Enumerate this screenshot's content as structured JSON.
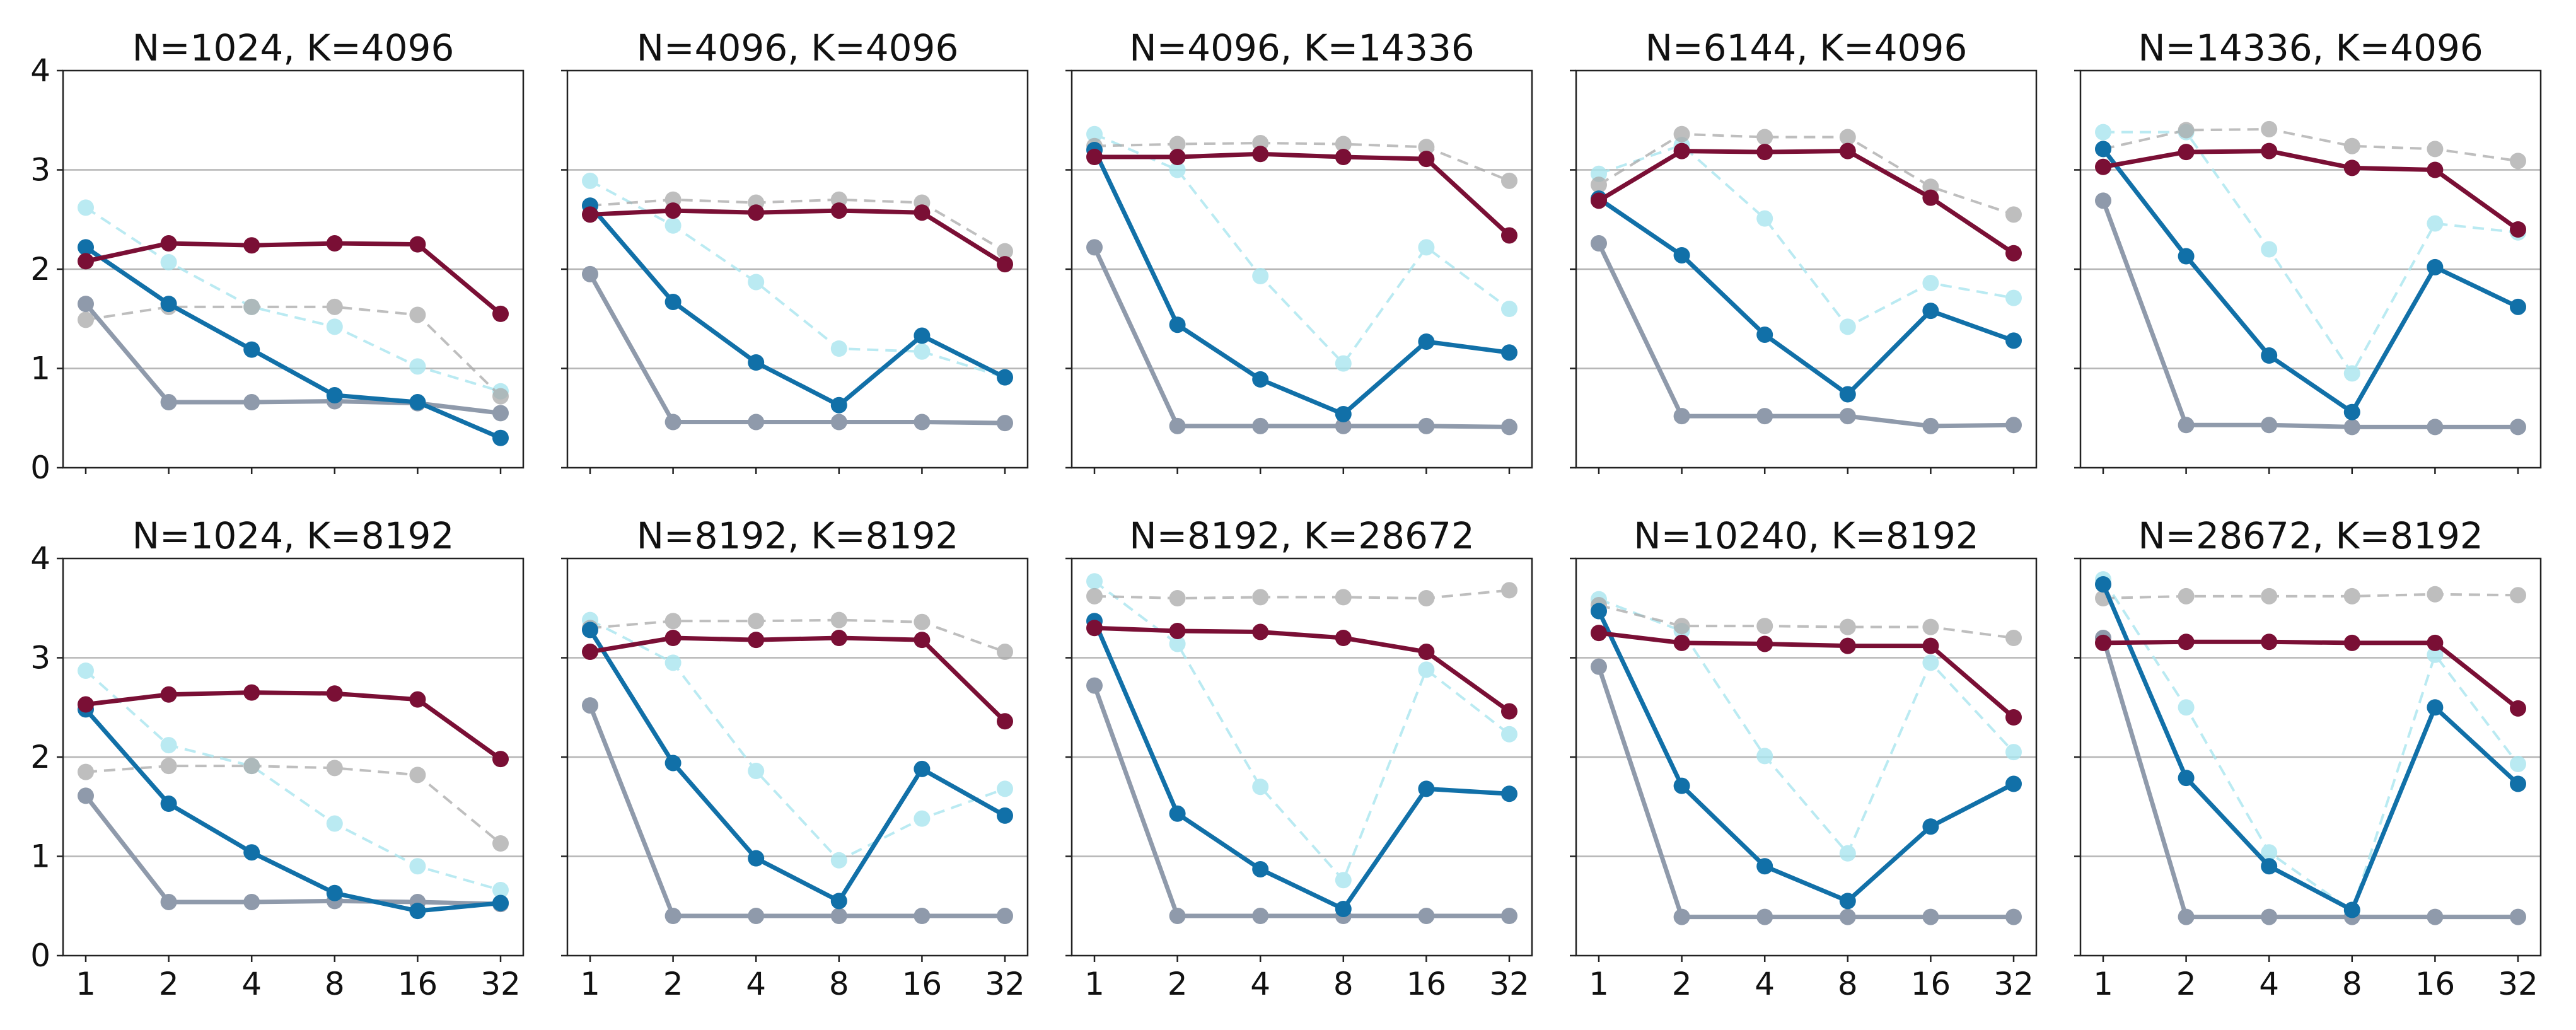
{
  "chart_data": {
    "type": "line",
    "layout": "2x5 small multiples",
    "x_scale": "log2",
    "x": [
      1,
      2,
      4,
      8,
      16,
      32
    ],
    "x_tick_labels": [
      "1",
      "2",
      "4",
      "8",
      "16",
      "32"
    ],
    "y_tick_labels": [
      "0",
      "1",
      "2",
      "3",
      "4"
    ],
    "ylim": [
      0,
      4
    ],
    "y_grid": true,
    "series_styles": [
      {
        "key": "crimson",
        "color": "#7a0f35",
        "dashed": false,
        "opacity": 1
      },
      {
        "key": "blue",
        "color": "#1170a8",
        "dashed": false,
        "opacity": 1
      },
      {
        "key": "slate",
        "color": "#8f9aab",
        "dashed": false,
        "opacity": 1
      },
      {
        "key": "gray-dashed",
        "color": "#a9a9a9",
        "dashed": true,
        "opacity": 0.75
      },
      {
        "key": "cyan-dashed",
        "color": "#a9e6ef",
        "dashed": true,
        "opacity": 0.8
      }
    ],
    "panels": [
      {
        "title": "N=1024, K=4096",
        "series": [
          {
            "style": "crimson",
            "values": [
              2.08,
              2.26,
              2.24,
              2.26,
              2.25,
              1.55
            ]
          },
          {
            "style": "blue",
            "values": [
              2.22,
              1.65,
              1.19,
              0.73,
              0.66,
              0.3
            ]
          },
          {
            "style": "slate",
            "values": [
              1.65,
              0.66,
              0.66,
              0.67,
              0.65,
              0.55
            ]
          },
          {
            "style": "gray-dashed",
            "values": [
              1.49,
              1.62,
              1.62,
              1.62,
              1.54,
              0.72
            ]
          },
          {
            "style": "cyan-dashed",
            "values": [
              2.62,
              2.07,
              1.62,
              1.42,
              1.02,
              0.77
            ]
          }
        ]
      },
      {
        "title": "N=4096, K=4096",
        "series": [
          {
            "style": "crimson",
            "values": [
              2.55,
              2.59,
              2.57,
              2.59,
              2.57,
              2.05
            ]
          },
          {
            "style": "blue",
            "values": [
              2.64,
              1.67,
              1.06,
              0.63,
              1.33,
              0.91
            ]
          },
          {
            "style": "slate",
            "values": [
              1.95,
              0.46,
              0.46,
              0.46,
              0.46,
              0.45
            ]
          },
          {
            "style": "gray-dashed",
            "values": [
              2.64,
              2.7,
              2.67,
              2.7,
              2.67,
              2.18
            ]
          },
          {
            "style": "cyan-dashed",
            "values": [
              2.89,
              2.44,
              1.87,
              1.2,
              1.17,
              0.91
            ]
          }
        ]
      },
      {
        "title": "N=4096, K=14336",
        "series": [
          {
            "style": "crimson",
            "values": [
              3.13,
              3.13,
              3.16,
              3.13,
              3.11,
              2.34
            ]
          },
          {
            "style": "blue",
            "values": [
              3.2,
              1.44,
              0.89,
              0.54,
              1.27,
              1.16
            ]
          },
          {
            "style": "slate",
            "values": [
              2.22,
              0.42,
              0.42,
              0.42,
              0.42,
              0.41
            ]
          },
          {
            "style": "gray-dashed",
            "values": [
              3.24,
              3.26,
              3.27,
              3.26,
              3.23,
              2.89
            ]
          },
          {
            "style": "cyan-dashed",
            "values": [
              3.36,
              3.0,
              1.93,
              1.05,
              2.22,
              1.6
            ]
          }
        ]
      },
      {
        "title": "N=6144, K=4096",
        "series": [
          {
            "style": "crimson",
            "values": [
              2.69,
              3.19,
              3.18,
              3.19,
              2.72,
              2.16
            ]
          },
          {
            "style": "blue",
            "values": [
              2.71,
              2.14,
              1.34,
              0.74,
              1.58,
              1.28
            ]
          },
          {
            "style": "slate",
            "values": [
              2.26,
              0.52,
              0.52,
              0.52,
              0.42,
              0.43
            ]
          },
          {
            "style": "gray-dashed",
            "values": [
              2.85,
              3.36,
              3.33,
              3.33,
              2.83,
              2.55
            ]
          },
          {
            "style": "cyan-dashed",
            "values": [
              2.96,
              3.25,
              2.51,
              1.42,
              1.86,
              1.71
            ]
          }
        ]
      },
      {
        "title": "N=14336, K=4096",
        "series": [
          {
            "style": "crimson",
            "values": [
              3.03,
              3.18,
              3.19,
              3.02,
              3.0,
              2.4
            ]
          },
          {
            "style": "blue",
            "values": [
              3.21,
              2.13,
              1.13,
              0.56,
              2.02,
              1.62
            ]
          },
          {
            "style": "slate",
            "values": [
              2.69,
              0.43,
              0.43,
              0.41,
              0.41,
              0.41
            ]
          },
          {
            "style": "gray-dashed",
            "values": [
              3.21,
              3.4,
              3.41,
              3.24,
              3.21,
              3.09
            ]
          },
          {
            "style": "cyan-dashed",
            "values": [
              3.38,
              3.38,
              2.2,
              0.95,
              2.46,
              2.37
            ]
          }
        ]
      },
      {
        "title": "N=1024, K=8192",
        "series": [
          {
            "style": "crimson",
            "values": [
              2.53,
              2.63,
              2.65,
              2.64,
              2.58,
              1.98
            ]
          },
          {
            "style": "blue",
            "values": [
              2.48,
              1.53,
              1.04,
              0.63,
              0.45,
              0.53
            ]
          },
          {
            "style": "slate",
            "values": [
              1.61,
              0.54,
              0.54,
              0.55,
              0.54,
              0.52
            ]
          },
          {
            "style": "gray-dashed",
            "values": [
              1.85,
              1.91,
              1.91,
              1.89,
              1.82,
              1.13
            ]
          },
          {
            "style": "cyan-dashed",
            "values": [
              2.87,
              2.12,
              1.91,
              1.33,
              0.9,
              0.66
            ]
          }
        ]
      },
      {
        "title": "N=8192, K=8192",
        "series": [
          {
            "style": "crimson",
            "values": [
              3.06,
              3.2,
              3.18,
              3.2,
              3.18,
              2.36
            ]
          },
          {
            "style": "blue",
            "values": [
              3.28,
              1.94,
              0.98,
              0.55,
              1.88,
              1.41
            ]
          },
          {
            "style": "slate",
            "values": [
              2.52,
              0.4,
              0.4,
              0.4,
              0.4,
              0.4
            ]
          },
          {
            "style": "gray-dashed",
            "values": [
              3.3,
              3.37,
              3.37,
              3.38,
              3.36,
              3.06
            ]
          },
          {
            "style": "cyan-dashed",
            "values": [
              3.38,
              2.95,
              1.86,
              0.96,
              1.38,
              1.68
            ]
          }
        ]
      },
      {
        "title": "N=8192, K=28672",
        "series": [
          {
            "style": "crimson",
            "values": [
              3.3,
              3.27,
              3.26,
              3.2,
              3.06,
              2.46
            ]
          },
          {
            "style": "blue",
            "values": [
              3.37,
              1.43,
              0.87,
              0.47,
              1.68,
              1.63
            ]
          },
          {
            "style": "slate",
            "values": [
              2.72,
              0.4,
              0.4,
              0.4,
              0.4,
              0.4
            ]
          },
          {
            "style": "gray-dashed",
            "values": [
              3.62,
              3.6,
              3.61,
              3.61,
              3.6,
              3.68
            ]
          },
          {
            "style": "cyan-dashed",
            "values": [
              3.77,
              3.14,
              1.7,
              0.76,
              2.88,
              2.23
            ]
          }
        ]
      },
      {
        "title": "N=10240, K=8192",
        "series": [
          {
            "style": "crimson",
            "values": [
              3.25,
              3.15,
              3.14,
              3.12,
              3.12,
              2.4
            ]
          },
          {
            "style": "blue",
            "values": [
              3.47,
              1.71,
              0.9,
              0.55,
              1.3,
              1.73
            ]
          },
          {
            "style": "slate",
            "values": [
              2.91,
              0.39,
              0.39,
              0.39,
              0.39,
              0.39
            ]
          },
          {
            "style": "gray-dashed",
            "values": [
              3.53,
              3.32,
              3.32,
              3.31,
              3.31,
              3.2
            ]
          },
          {
            "style": "cyan-dashed",
            "values": [
              3.59,
              3.27,
              2.01,
              1.03,
              2.95,
              2.05
            ]
          }
        ]
      },
      {
        "title": "N=28672, K=8192",
        "series": [
          {
            "style": "crimson",
            "values": [
              3.15,
              3.16,
              3.16,
              3.15,
              3.15,
              2.49
            ]
          },
          {
            "style": "blue",
            "values": [
              3.74,
              1.79,
              0.9,
              0.46,
              2.5,
              1.73
            ]
          },
          {
            "style": "slate",
            "values": [
              3.2,
              0.39,
              0.39,
              0.39,
              0.39,
              0.39
            ]
          },
          {
            "style": "gray-dashed",
            "values": [
              3.6,
              3.62,
              3.62,
              3.62,
              3.64,
              3.63
            ]
          },
          {
            "style": "cyan-dashed",
            "values": [
              3.79,
              2.5,
              1.04,
              0.45,
              3.03,
              1.93
            ]
          }
        ]
      }
    ]
  }
}
